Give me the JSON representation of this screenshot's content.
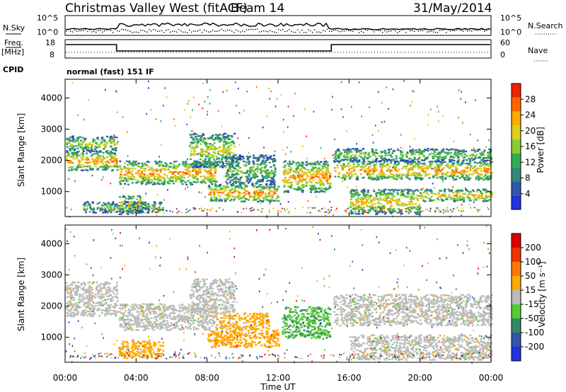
{
  "header": {
    "station": "Christmas Valley West (fitACF)",
    "beam": "Beam 14",
    "date": "31/May/2014"
  },
  "strip": {
    "nsky_label": "N.Sky",
    "nsky_ticks": [
      "10^5",
      "10^0"
    ],
    "nsearch_label": "N.Search",
    "nsearch_ticks": [
      "10^5",
      "10^0"
    ],
    "freq_label_1": "Freq.",
    "freq_label_2": "[MHz]",
    "freq_ticks": [
      "18",
      "8"
    ],
    "nave_label": "Nave",
    "nave_ticks": [
      "60",
      "0"
    ],
    "cpid_label": "CPID",
    "cpid_value": "normal (fast) 151 IF"
  },
  "colors": {
    "power": [
      "#2233dd",
      "#3355aa",
      "#338877",
      "#33aa55",
      "#88cc33",
      "#ddcc22",
      "#ffaa00",
      "#ff6600",
      "#ee2200"
    ],
    "velocity": [
      "#2233dd",
      "#3355aa",
      "#338866",
      "#55cc33",
      "#bbbbbb",
      "#ffaa00",
      "#ff7700",
      "#ee3300",
      "#dd0000"
    ]
  },
  "chart_data": [
    {
      "type": "heatmap",
      "panel": "power",
      "xlabel": "",
      "ylabel": "Slant Range [km]",
      "ylim": [
        200,
        4600
      ],
      "xlim": [
        0,
        24
      ],
      "yticks": [
        "1000",
        "2000",
        "3000",
        "4000"
      ],
      "colorbar_label": "Power [dB]",
      "colorbar_ticks": [
        "4",
        "8",
        "12",
        "16",
        "20",
        "24",
        "28"
      ],
      "bands": [
        {
          "t0": 0.0,
          "t1": 2.9,
          "r0": 1700,
          "r1": 2300,
          "level": 0.8
        },
        {
          "t0": 0.0,
          "t1": 2.9,
          "r0": 2300,
          "r1": 2800,
          "level": 0.55
        },
        {
          "t0": 3.0,
          "t1": 4.3,
          "r0": 300,
          "r1": 900,
          "level": 0.75
        },
        {
          "t0": 1.0,
          "t1": 5.5,
          "r0": 350,
          "r1": 700,
          "level": 0.45
        },
        {
          "t0": 3.0,
          "t1": 8.5,
          "r0": 1250,
          "r1": 2000,
          "level": 0.8
        },
        {
          "t0": 7.0,
          "t1": 9.5,
          "r0": 1800,
          "r1": 2900,
          "level": 0.6
        },
        {
          "t0": 8.0,
          "t1": 12.0,
          "r0": 700,
          "r1": 1250,
          "level": 0.8
        },
        {
          "t0": 9.0,
          "t1": 11.8,
          "r0": 1250,
          "r1": 2200,
          "level": 0.45
        },
        {
          "t0": 12.2,
          "t1": 14.9,
          "r0": 1000,
          "r1": 2000,
          "level": 0.8
        },
        {
          "t0": 15.1,
          "t1": 24.0,
          "r0": 1400,
          "r1": 2000,
          "level": 0.8
        },
        {
          "t0": 15.1,
          "t1": 24.0,
          "r0": 2000,
          "r1": 2400,
          "level": 0.5
        },
        {
          "t0": 16.0,
          "t1": 20.0,
          "r0": 300,
          "r1": 1100,
          "level": 0.7
        },
        {
          "t0": 20.0,
          "t1": 24.0,
          "r0": 700,
          "r1": 1100,
          "level": 0.7
        }
      ]
    },
    {
      "type": "heatmap",
      "panel": "velocity",
      "xlabel": "Time UT",
      "ylabel": "Slant Range [km]",
      "ylim": [
        200,
        4600
      ],
      "xlim": [
        0,
        24
      ],
      "xticks": [
        "00:00",
        "04:00",
        "08:00",
        "12:00",
        "16:00",
        "20:00",
        "00:00"
      ],
      "yticks": [
        "1000",
        "2000",
        "3000",
        "4000"
      ],
      "colorbar_label": "Velocity [m s⁻¹]",
      "colorbar_ticks": [
        "200",
        "100",
        "50",
        "15",
        "-15",
        "-50",
        "-100",
        "-200"
      ],
      "bands": [
        {
          "t0": 0.0,
          "t1": 2.9,
          "r0": 1700,
          "r1": 2800,
          "level": 0.5
        },
        {
          "t0": 3.0,
          "t1": 5.5,
          "r0": 350,
          "r1": 900,
          "level": 0.62
        },
        {
          "t0": 3.0,
          "t1": 8.5,
          "r0": 1250,
          "r1": 2100,
          "level": 0.5
        },
        {
          "t0": 7.0,
          "t1": 9.5,
          "r0": 1800,
          "r1": 2900,
          "level": 0.5
        },
        {
          "t0": 8.0,
          "t1": 12.0,
          "r0": 700,
          "r1": 1250,
          "level": 0.62
        },
        {
          "t0": 8.5,
          "t1": 11.5,
          "r0": 1250,
          "r1": 1800,
          "level": 0.6
        },
        {
          "t0": 12.2,
          "t1": 14.9,
          "r0": 1000,
          "r1": 2000,
          "level": 0.35
        },
        {
          "t0": 15.1,
          "t1": 24.0,
          "r0": 1400,
          "r1": 2400,
          "level": 0.5
        },
        {
          "t0": 16.0,
          "t1": 24.0,
          "r0": 300,
          "r1": 1100,
          "level": 0.5
        }
      ]
    }
  ]
}
